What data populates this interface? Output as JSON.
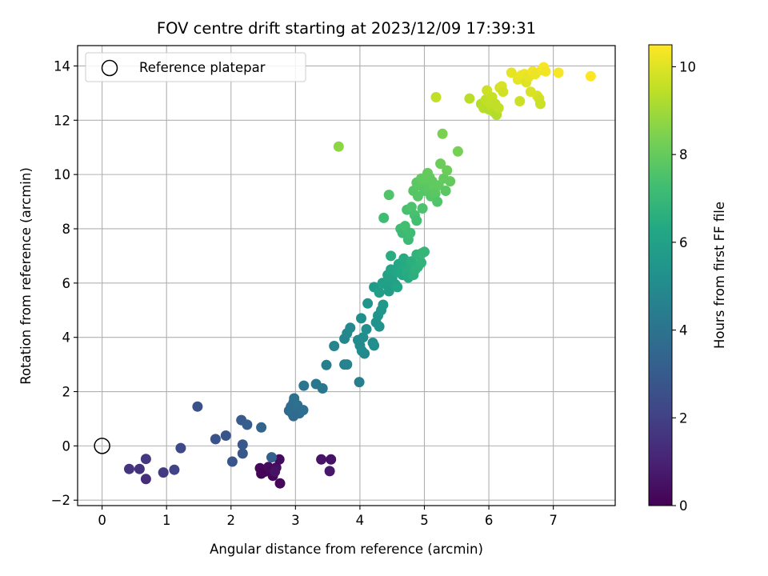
{
  "chart_data": {
    "type": "scatter",
    "title": "FOV centre drift starting at 2023/12/09 17:39:31",
    "xlabel": "Angular distance from reference (arcmin)",
    "ylabel": "Rotation from reference (arcmin)",
    "xlim": [
      -0.38,
      7.96
    ],
    "ylim": [
      -2.2,
      14.75
    ],
    "xticks": [
      0,
      1,
      2,
      3,
      4,
      5,
      6,
      7
    ],
    "yticks": [
      -2,
      0,
      2,
      4,
      6,
      8,
      10,
      12,
      14
    ],
    "grid": true,
    "legend": {
      "placement": "top-left",
      "entries": [
        "Reference platepar"
      ]
    },
    "reference_point": {
      "x": 0,
      "y": 0
    },
    "colorbar": {
      "label": "Hours from first FF file",
      "range": [
        0,
        10.5
      ],
      "ticks": [
        0,
        2,
        4,
        6,
        8,
        10
      ],
      "colormap": "viridis"
    },
    "points": [
      {
        "x": 2.45,
        "y": -0.82,
        "c": 0.2
      },
      {
        "x": 2.52,
        "y": -0.95,
        "c": 0.1
      },
      {
        "x": 2.58,
        "y": -0.78,
        "c": 0.3
      },
      {
        "x": 2.62,
        "y": -0.9,
        "c": 0.2
      },
      {
        "x": 2.65,
        "y": -1.1,
        "c": 0.1
      },
      {
        "x": 2.7,
        "y": -0.8,
        "c": 0.4
      },
      {
        "x": 2.75,
        "y": -0.5,
        "c": 0.3
      },
      {
        "x": 2.76,
        "y": -1.38,
        "c": 0.2
      },
      {
        "x": 2.47,
        "y": -1.02,
        "c": 0.1
      },
      {
        "x": 2.68,
        "y": -0.95,
        "c": 0.5
      },
      {
        "x": 3.4,
        "y": -0.5,
        "c": 0.6
      },
      {
        "x": 3.55,
        "y": -0.5,
        "c": 0.5
      },
      {
        "x": 3.53,
        "y": -0.93,
        "c": 0.7
      },
      {
        "x": 0.42,
        "y": -0.85,
        "c": 1.6
      },
      {
        "x": 0.58,
        "y": -0.85,
        "c": 1.5
      },
      {
        "x": 0.68,
        "y": -0.48,
        "c": 1.7
      },
      {
        "x": 0.68,
        "y": -1.22,
        "c": 1.4
      },
      {
        "x": 0.95,
        "y": -0.98,
        "c": 1.8
      },
      {
        "x": 1.12,
        "y": -0.88,
        "c": 2.1
      },
      {
        "x": 1.22,
        "y": -0.08,
        "c": 2.3
      },
      {
        "x": 1.48,
        "y": 1.45,
        "c": 2.6
      },
      {
        "x": 1.76,
        "y": 0.25,
        "c": 2.7
      },
      {
        "x": 1.92,
        "y": 0.38,
        "c": 2.8
      },
      {
        "x": 2.02,
        "y": -0.58,
        "c": 2.8
      },
      {
        "x": 2.16,
        "y": 0.95,
        "c": 3.0
      },
      {
        "x": 2.18,
        "y": 0.05,
        "c": 2.9
      },
      {
        "x": 2.18,
        "y": -0.28,
        "c": 2.9
      },
      {
        "x": 2.25,
        "y": 0.78,
        "c": 3.1
      },
      {
        "x": 2.47,
        "y": 0.68,
        "c": 3.4
      },
      {
        "x": 2.63,
        "y": -0.42,
        "c": 3.2
      },
      {
        "x": 2.9,
        "y": 1.3,
        "c": 3.6
      },
      {
        "x": 2.93,
        "y": 1.45,
        "c": 3.7
      },
      {
        "x": 2.95,
        "y": 1.2,
        "c": 3.8
      },
      {
        "x": 2.97,
        "y": 1.6,
        "c": 3.7
      },
      {
        "x": 2.98,
        "y": 1.75,
        "c": 3.9
      },
      {
        "x": 3.0,
        "y": 1.35,
        "c": 3.8
      },
      {
        "x": 3.03,
        "y": 1.5,
        "c": 3.9
      },
      {
        "x": 3.06,
        "y": 1.2,
        "c": 3.7
      },
      {
        "x": 3.12,
        "y": 1.32,
        "c": 3.8
      },
      {
        "x": 2.97,
        "y": 1.1,
        "c": 3.6
      },
      {
        "x": 3.13,
        "y": 2.22,
        "c": 4.1
      },
      {
        "x": 3.32,
        "y": 2.28,
        "c": 4.2
      },
      {
        "x": 3.42,
        "y": 2.12,
        "c": 4.2
      },
      {
        "x": 3.48,
        "y": 2.98,
        "c": 4.5
      },
      {
        "x": 3.6,
        "y": 3.68,
        "c": 4.7
      },
      {
        "x": 3.76,
        "y": 3.0,
        "c": 4.6
      },
      {
        "x": 3.8,
        "y": 3.0,
        "c": 4.7
      },
      {
        "x": 3.76,
        "y": 3.95,
        "c": 4.8
      },
      {
        "x": 3.8,
        "y": 4.15,
        "c": 4.9
      },
      {
        "x": 3.85,
        "y": 4.35,
        "c": 4.9
      },
      {
        "x": 3.97,
        "y": 3.9,
        "c": 5.0
      },
      {
        "x": 4.0,
        "y": 3.7,
        "c": 5.0
      },
      {
        "x": 4.03,
        "y": 3.5,
        "c": 5.1
      },
      {
        "x": 4.05,
        "y": 4.0,
        "c": 5.1
      },
      {
        "x": 4.02,
        "y": 4.7,
        "c": 5.2
      },
      {
        "x": 4.07,
        "y": 3.4,
        "c": 5.0
      },
      {
        "x": 4.1,
        "y": 4.3,
        "c": 5.2
      },
      {
        "x": 4.12,
        "y": 5.25,
        "c": 5.4
      },
      {
        "x": 4.2,
        "y": 3.8,
        "c": 5.1
      },
      {
        "x": 4.22,
        "y": 3.7,
        "c": 5.2
      },
      {
        "x": 4.25,
        "y": 4.55,
        "c": 5.3
      },
      {
        "x": 4.28,
        "y": 4.8,
        "c": 5.4
      },
      {
        "x": 4.3,
        "y": 4.4,
        "c": 5.3
      },
      {
        "x": 4.33,
        "y": 5.0,
        "c": 5.5
      },
      {
        "x": 4.36,
        "y": 5.2,
        "c": 5.6
      },
      {
        "x": 3.99,
        "y": 2.35,
        "c": 4.5
      },
      {
        "x": 4.22,
        "y": 5.85,
        "c": 5.7
      },
      {
        "x": 4.3,
        "y": 5.65,
        "c": 5.8
      },
      {
        "x": 4.35,
        "y": 6.0,
        "c": 5.9
      },
      {
        "x": 4.4,
        "y": 5.95,
        "c": 5.9
      },
      {
        "x": 4.43,
        "y": 6.3,
        "c": 6.0
      },
      {
        "x": 4.45,
        "y": 5.7,
        "c": 5.8
      },
      {
        "x": 4.48,
        "y": 6.5,
        "c": 6.1
      },
      {
        "x": 4.5,
        "y": 6.15,
        "c": 6.0
      },
      {
        "x": 4.55,
        "y": 5.95,
        "c": 6.0
      },
      {
        "x": 4.57,
        "y": 6.4,
        "c": 6.2
      },
      {
        "x": 4.58,
        "y": 5.85,
        "c": 6.1
      },
      {
        "x": 4.6,
        "y": 6.7,
        "c": 6.2
      },
      {
        "x": 4.63,
        "y": 6.5,
        "c": 6.3
      },
      {
        "x": 4.66,
        "y": 6.3,
        "c": 6.3
      },
      {
        "x": 4.68,
        "y": 6.9,
        "c": 6.4
      },
      {
        "x": 4.7,
        "y": 6.6,
        "c": 6.4
      },
      {
        "x": 4.73,
        "y": 6.4,
        "c": 6.5
      },
      {
        "x": 4.75,
        "y": 6.2,
        "c": 6.4
      },
      {
        "x": 4.78,
        "y": 6.55,
        "c": 6.5
      },
      {
        "x": 4.8,
        "y": 6.8,
        "c": 6.6
      },
      {
        "x": 4.83,
        "y": 6.3,
        "c": 6.6
      },
      {
        "x": 4.86,
        "y": 6.5,
        "c": 6.7
      },
      {
        "x": 4.88,
        "y": 7.05,
        "c": 6.8
      },
      {
        "x": 4.9,
        "y": 6.6,
        "c": 6.7
      },
      {
        "x": 4.95,
        "y": 6.75,
        "c": 6.8
      },
      {
        "x": 4.96,
        "y": 7.1,
        "c": 6.9
      },
      {
        "x": 5.0,
        "y": 7.15,
        "c": 6.9
      },
      {
        "x": 4.48,
        "y": 7.0,
        "c": 6.5
      },
      {
        "x": 4.37,
        "y": 8.4,
        "c": 7.2
      },
      {
        "x": 4.45,
        "y": 9.25,
        "c": 7.6
      },
      {
        "x": 4.63,
        "y": 8.0,
        "c": 7.2
      },
      {
        "x": 4.66,
        "y": 7.85,
        "c": 7.1
      },
      {
        "x": 4.7,
        "y": 8.1,
        "c": 7.3
      },
      {
        "x": 4.73,
        "y": 8.7,
        "c": 7.4
      },
      {
        "x": 4.75,
        "y": 7.6,
        "c": 7.1
      },
      {
        "x": 4.78,
        "y": 7.85,
        "c": 7.2
      },
      {
        "x": 4.8,
        "y": 8.8,
        "c": 7.5
      },
      {
        "x": 4.83,
        "y": 9.4,
        "c": 7.7
      },
      {
        "x": 4.85,
        "y": 8.5,
        "c": 7.4
      },
      {
        "x": 4.88,
        "y": 9.7,
        "c": 7.8
      },
      {
        "x": 4.88,
        "y": 8.3,
        "c": 7.3
      },
      {
        "x": 4.9,
        "y": 9.2,
        "c": 7.7
      },
      {
        "x": 4.92,
        "y": 9.6,
        "c": 7.8
      },
      {
        "x": 4.95,
        "y": 9.85,
        "c": 7.9
      },
      {
        "x": 4.97,
        "y": 8.75,
        "c": 7.5
      },
      {
        "x": 5.0,
        "y": 9.4,
        "c": 7.7
      },
      {
        "x": 5.02,
        "y": 9.8,
        "c": 7.9
      },
      {
        "x": 5.05,
        "y": 10.05,
        "c": 8.0
      },
      {
        "x": 5.06,
        "y": 9.5,
        "c": 7.8
      },
      {
        "x": 5.08,
        "y": 9.9,
        "c": 8.0
      },
      {
        "x": 5.1,
        "y": 9.2,
        "c": 7.7
      },
      {
        "x": 5.12,
        "y": 9.75,
        "c": 7.9
      },
      {
        "x": 5.15,
        "y": 9.55,
        "c": 7.9
      },
      {
        "x": 5.17,
        "y": 9.3,
        "c": 7.8
      },
      {
        "x": 5.2,
        "y": 9.0,
        "c": 7.6
      },
      {
        "x": 5.22,
        "y": 9.6,
        "c": 7.9
      },
      {
        "x": 5.25,
        "y": 10.4,
        "c": 8.1
      },
      {
        "x": 5.28,
        "y": 11.5,
        "c": 8.4
      },
      {
        "x": 5.3,
        "y": 9.85,
        "c": 8.0
      },
      {
        "x": 5.33,
        "y": 9.4,
        "c": 7.8
      },
      {
        "x": 5.35,
        "y": 10.15,
        "c": 8.1
      },
      {
        "x": 5.4,
        "y": 9.75,
        "c": 8.0
      },
      {
        "x": 5.52,
        "y": 10.85,
        "c": 8.3
      },
      {
        "x": 3.67,
        "y": 11.03,
        "c": 8.7
      },
      {
        "x": 5.18,
        "y": 12.85,
        "c": 9.5
      },
      {
        "x": 5.7,
        "y": 12.8,
        "c": 9.4
      },
      {
        "x": 5.88,
        "y": 12.6,
        "c": 9.3
      },
      {
        "x": 5.92,
        "y": 12.45,
        "c": 9.4
      },
      {
        "x": 5.95,
        "y": 12.75,
        "c": 9.5
      },
      {
        "x": 5.97,
        "y": 13.1,
        "c": 9.7
      },
      {
        "x": 6.0,
        "y": 12.4,
        "c": 9.3
      },
      {
        "x": 6.03,
        "y": 12.55,
        "c": 9.5
      },
      {
        "x": 6.05,
        "y": 12.85,
        "c": 9.6
      },
      {
        "x": 6.08,
        "y": 12.3,
        "c": 9.4
      },
      {
        "x": 6.1,
        "y": 12.6,
        "c": 9.5
      },
      {
        "x": 6.12,
        "y": 12.2,
        "c": 9.3
      },
      {
        "x": 6.15,
        "y": 12.45,
        "c": 9.5
      },
      {
        "x": 6.17,
        "y": 13.2,
        "c": 9.8
      },
      {
        "x": 6.2,
        "y": 13.25,
        "c": 9.9
      },
      {
        "x": 6.22,
        "y": 13.05,
        "c": 9.8
      },
      {
        "x": 6.35,
        "y": 13.75,
        "c": 10.1
      },
      {
        "x": 6.45,
        "y": 13.5,
        "c": 10.1
      },
      {
        "x": 6.48,
        "y": 12.7,
        "c": 9.7
      },
      {
        "x": 6.5,
        "y": 13.65,
        "c": 10.2
      },
      {
        "x": 6.53,
        "y": 13.55,
        "c": 10.1
      },
      {
        "x": 6.55,
        "y": 13.7,
        "c": 10.2
      },
      {
        "x": 6.58,
        "y": 13.4,
        "c": 10.0
      },
      {
        "x": 6.62,
        "y": 13.6,
        "c": 10.1
      },
      {
        "x": 6.65,
        "y": 13.05,
        "c": 9.9
      },
      {
        "x": 6.68,
        "y": 13.8,
        "c": 10.3
      },
      {
        "x": 6.72,
        "y": 13.7,
        "c": 10.2
      },
      {
        "x": 6.75,
        "y": 12.9,
        "c": 9.9
      },
      {
        "x": 6.78,
        "y": 12.8,
        "c": 9.8
      },
      {
        "x": 6.8,
        "y": 12.6,
        "c": 9.7
      },
      {
        "x": 6.82,
        "y": 13.85,
        "c": 10.3
      },
      {
        "x": 6.85,
        "y": 13.95,
        "c": 10.4
      },
      {
        "x": 6.88,
        "y": 13.8,
        "c": 10.3
      },
      {
        "x": 7.08,
        "y": 13.75,
        "c": 10.4
      },
      {
        "x": 7.58,
        "y": 13.62,
        "c": 10.5
      }
    ]
  }
}
